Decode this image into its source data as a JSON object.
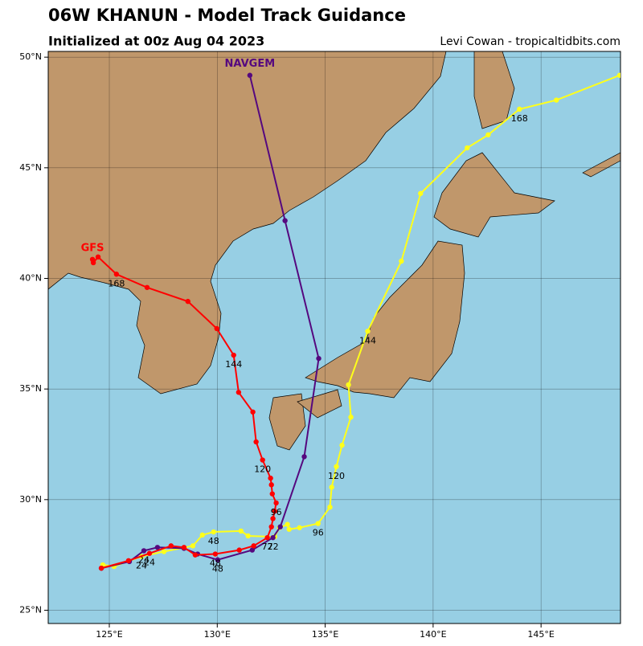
{
  "chart_data": {
    "type": "track",
    "title": "06W KHANUN - Model Track Guidance",
    "subtitle": "Initialized at 00z Aug 04 2023",
    "credit": "Levi Cowan - tropicaltidbits.com",
    "xlim": [
      122.17,
      148.68
    ],
    "ylim": [
      24.4,
      50.26
    ],
    "grid": true,
    "xticks": [
      {
        "value": 125,
        "label": "125°E"
      },
      {
        "value": 130,
        "label": "130°E"
      },
      {
        "value": 135,
        "label": "135°E"
      },
      {
        "value": 140,
        "label": "140°E"
      },
      {
        "value": 145,
        "label": "145°E"
      }
    ],
    "yticks": [
      {
        "value": 25,
        "label": "25°N"
      },
      {
        "value": 30,
        "label": "30°N"
      },
      {
        "value": 35,
        "label": "35°N"
      },
      {
        "value": 40,
        "label": "40°N"
      },
      {
        "value": 45,
        "label": "45°N"
      },
      {
        "value": 50,
        "label": "50°N"
      }
    ],
    "series": [
      {
        "color": "#ffff1a",
        "lon": [
          124.7,
          125.22,
          126.49,
          127.53,
          128.87,
          129.31,
          129.83,
          131.1,
          131.43,
          132.66,
          132.88,
          133.25,
          133.33,
          133.81,
          134.67,
          135.22,
          135.3,
          135.52,
          135.78,
          136.19,
          136.08,
          136.97,
          138.53,
          139.42,
          141.58,
          142.55,
          144.0,
          145.71,
          148.64
        ],
        "lat": [
          27.05,
          26.98,
          27.43,
          27.65,
          27.91,
          28.4,
          28.54,
          28.58,
          28.36,
          28.32,
          28.73,
          28.88,
          28.66,
          28.73,
          28.92,
          29.66,
          30.56,
          31.49,
          32.46,
          33.73,
          35.19,
          37.61,
          40.78,
          43.84,
          45.9,
          46.49,
          47.65,
          48.06,
          49.18
        ],
        "labels": [
          null,
          null,
          "24",
          null,
          null,
          null,
          "48",
          null,
          null,
          null,
          null,
          null,
          null,
          null,
          "96",
          null,
          null,
          "120",
          null,
          null,
          null,
          "144",
          null,
          null,
          null,
          null,
          "168",
          null,
          null
        ]
      },
      {
        "name": "NAVGEM",
        "color": "#55087f",
        "lon": [
          124.63,
          125.93,
          126.6,
          127.23,
          128.46,
          129.09,
          130.02,
          131.62,
          132.58,
          132.92,
          134.03,
          134.7,
          133.14,
          131.51
        ],
        "lat": [
          26.9,
          27.2,
          27.69,
          27.84,
          27.8,
          27.54,
          27.28,
          27.72,
          28.28,
          28.77,
          31.94,
          36.38,
          42.61,
          49.18
        ],
        "labels": [
          null,
          null,
          "24",
          null,
          null,
          null,
          "48",
          null,
          "72",
          null,
          null,
          null,
          null,
          null
        ]
      },
      {
        "name": "GFS",
        "color": "#ff0000",
        "lon": [
          124.63,
          125.89,
          126.86,
          127.86,
          128.46,
          128.98,
          129.91,
          131.02,
          131.69,
          132.32,
          132.51,
          132.58,
          132.66,
          132.73,
          132.55,
          132.51,
          132.47,
          132.1,
          131.8,
          131.65,
          130.99,
          130.76,
          129.98,
          128.64,
          126.75,
          125.33,
          124.48,
          124.26,
          124.22
        ],
        "lat": [
          26.9,
          27.24,
          27.57,
          27.91,
          27.84,
          27.5,
          27.54,
          27.72,
          27.91,
          28.28,
          28.77,
          29.14,
          29.48,
          29.85,
          30.26,
          30.67,
          30.97,
          31.79,
          32.61,
          33.96,
          34.85,
          36.53,
          37.73,
          38.96,
          39.59,
          40.19,
          40.97,
          40.71,
          40.86
        ],
        "labels": [
          null,
          null,
          "24",
          null,
          null,
          null,
          "48",
          null,
          null,
          "72",
          null,
          null,
          null,
          "96",
          null,
          null,
          null,
          "120",
          null,
          null,
          null,
          "144",
          null,
          null,
          null,
          "168",
          null,
          null,
          null
        ]
      }
    ]
  }
}
